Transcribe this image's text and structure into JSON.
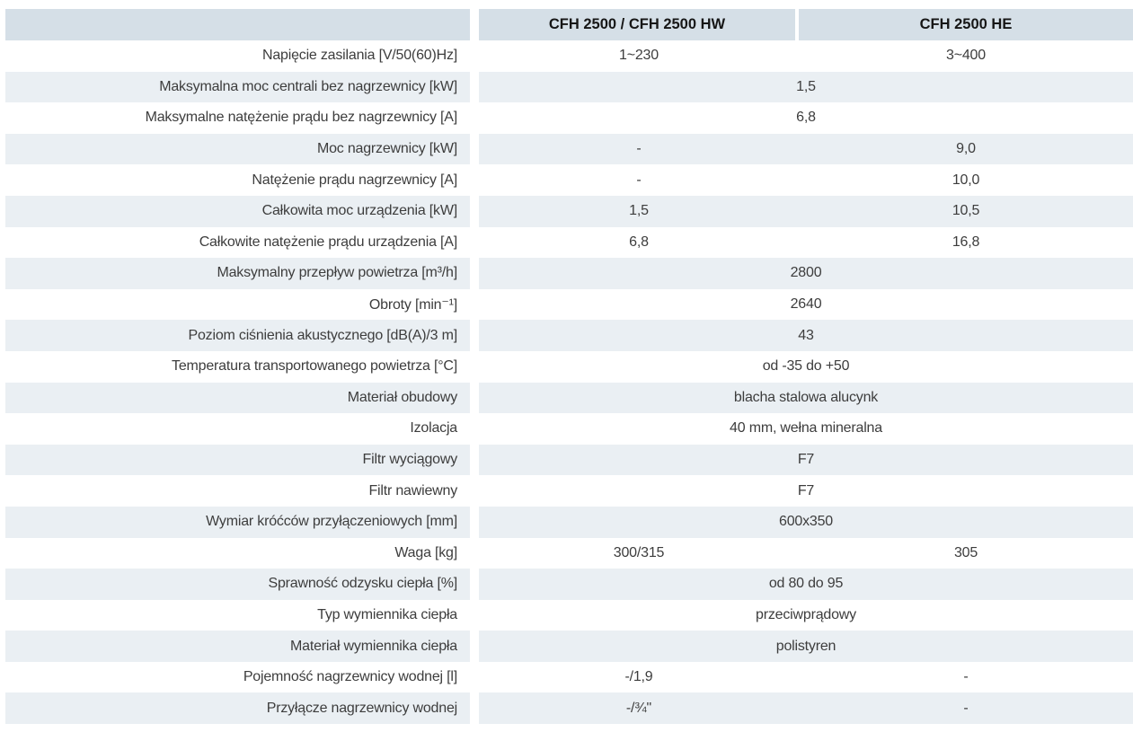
{
  "colors": {
    "header_bg": "#d5dfe7",
    "stripe_bg": "#eaeff3",
    "text": "#3d3d3d",
    "header_text": "#161616"
  },
  "table": {
    "columns": [
      "",
      "CFH 2500 / CFH 2500 HW",
      "CFH 2500 HE"
    ],
    "rows": [
      {
        "label": "Napięcie zasilania [V/50(60)Hz]",
        "values": [
          "1~230",
          "3~400"
        ]
      },
      {
        "label": "Maksymalna moc centrali bez nagrzewnicy [kW]",
        "span": "1,5"
      },
      {
        "label": "Maksymalne natężenie prądu bez nagrzewnicy [A]",
        "span": "6,8"
      },
      {
        "label": "Moc nagrzewnicy [kW]",
        "values": [
          "-",
          "9,0"
        ]
      },
      {
        "label": "Natężenie prądu nagrzewnicy [A]",
        "values": [
          "-",
          "10,0"
        ]
      },
      {
        "label": "Całkowita moc urządzenia [kW]",
        "values": [
          "1,5",
          "10,5"
        ]
      },
      {
        "label": "Całkowite natężenie prądu urządzenia [A]",
        "values": [
          "6,8",
          "16,8"
        ]
      },
      {
        "label": "Maksymalny przepływ powietrza [m³/h]",
        "span": "2800"
      },
      {
        "label": "Obroty [min⁻¹]",
        "span": "2640"
      },
      {
        "label": "Poziom ciśnienia akustycznego [dB(A)/3 m]",
        "span": "43"
      },
      {
        "label": "Temperatura transportowanego powietrza [°C]",
        "span": "od -35 do +50"
      },
      {
        "label": "Materiał obudowy",
        "span": "blacha stalowa alucynk"
      },
      {
        "label": "Izolacja",
        "span": "40 mm, wełna mineralna"
      },
      {
        "label": "Filtr wyciągowy",
        "span": "F7"
      },
      {
        "label": "Filtr nawiewny",
        "span": "F7"
      },
      {
        "label": "Wymiar króćców przyłączeniowych [mm]",
        "span": "600x350"
      },
      {
        "label": "Waga [kg]",
        "values": [
          "300/315",
          "305"
        ]
      },
      {
        "label": "Sprawność odzysku ciepła [%]",
        "span": "od 80 do 95"
      },
      {
        "label": "Typ wymiennika ciepła",
        "span": "przeciwprądowy"
      },
      {
        "label": "Materiał wymiennika ciepła",
        "span": "polistyren"
      },
      {
        "label": "Pojemność nagrzewnicy wodnej [l]",
        "values": [
          "-/1,9",
          "-"
        ]
      },
      {
        "label": "Przyłącze nagrzewnicy wodnej",
        "values": [
          "-/¾''",
          "-"
        ]
      }
    ]
  }
}
